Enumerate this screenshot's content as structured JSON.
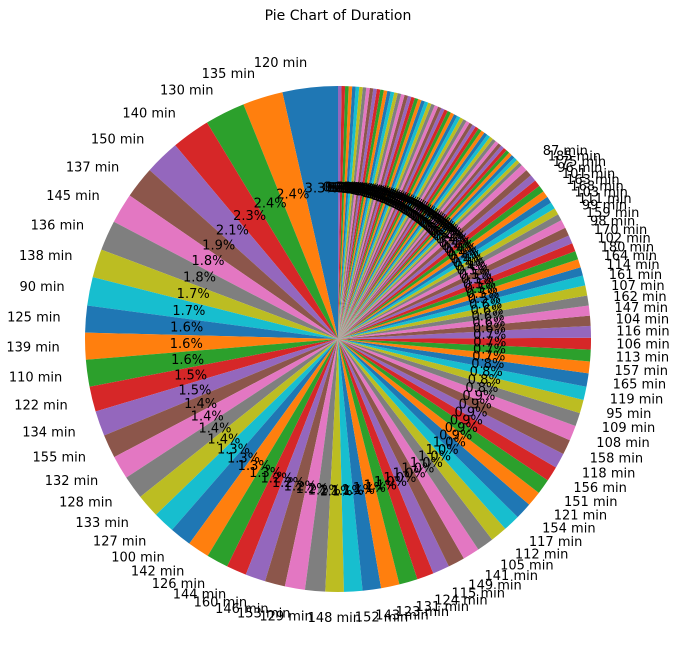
{
  "chart_data": {
    "type": "pie",
    "title": "Pie Chart of Duration",
    "start_angle_deg": 90,
    "direction": "counterclockwise",
    "label_suffix": " min",
    "palette": [
      "#1f77b4",
      "#ff7f0e",
      "#2ca02c",
      "#d62728",
      "#9467bd",
      "#8c564b",
      "#e377c2",
      "#7f7f7f",
      "#bcbd22",
      "#17becf"
    ],
    "named_slices": [
      {
        "label": "120 min",
        "value": 3.3
      },
      {
        "label": "135 min",
        "value": 2.4
      },
      {
        "label": "130 min",
        "value": 2.4
      },
      {
        "label": "140 min",
        "value": 2.3
      },
      {
        "label": "150 min",
        "value": 2.1
      },
      {
        "label": "137 min",
        "value": 1.9
      },
      {
        "label": "145 min",
        "value": 1.8
      },
      {
        "label": "136 min",
        "value": 1.8
      },
      {
        "label": "138 min",
        "value": 1.7
      },
      {
        "label": "90 min",
        "value": 1.7
      },
      {
        "label": "125 min",
        "value": 1.6
      },
      {
        "label": "139 min",
        "value": 1.6
      },
      {
        "label": "110 min",
        "value": 1.6
      },
      {
        "label": "122 min",
        "value": 1.5
      },
      {
        "label": "134 min",
        "value": 1.5
      },
      {
        "label": "155 min",
        "value": 1.4
      },
      {
        "label": "132 min",
        "value": 1.4
      },
      {
        "label": "128 min",
        "value": 1.4
      },
      {
        "label": "133 min",
        "value": 1.4
      },
      {
        "label": "127 min",
        "value": 1.3
      },
      {
        "label": "100 min",
        "value": 1.3
      },
      {
        "label": "142 min",
        "value": 1.3
      },
      {
        "label": "126 min",
        "value": 1.3
      },
      {
        "label": "144 min",
        "value": 1.2
      },
      {
        "label": "160 min",
        "value": 1.2
      },
      {
        "label": "146 min",
        "value": 1.2
      },
      {
        "label": "153 min",
        "value": 1.2
      },
      {
        "label": "129 min",
        "value": 1.2
      },
      {
        "label": "148 min",
        "value": 1.1
      },
      {
        "label": "152 min",
        "value": 1.1
      },
      {
        "label": "143 min",
        "value": 1.1
      },
      {
        "label": "123 min",
        "value": 1.1
      },
      {
        "label": "131 min",
        "value": 1.1
      },
      {
        "label": "124 min",
        "value": 1.0
      },
      {
        "label": "115 min",
        "value": 1.0
      },
      {
        "label": "149 min",
        "value": 1.0
      },
      {
        "label": "141 min",
        "value": 1.0
      },
      {
        "label": "105 min",
        "value": 1.0
      },
      {
        "label": "112 min",
        "value": 1.0
      },
      {
        "label": "117 min",
        "value": 1.0
      },
      {
        "label": "154 min",
        "value": 1.0
      },
      {
        "label": "121 min",
        "value": 0.9
      },
      {
        "label": "151 min",
        "value": 0.9
      },
      {
        "label": "156 min",
        "value": 0.9
      },
      {
        "label": "118 min",
        "value": 0.9
      },
      {
        "label": "158 min",
        "value": 0.9
      },
      {
        "label": "108 min",
        "value": 0.9
      },
      {
        "label": "109 min",
        "value": 0.8
      },
      {
        "label": "95 min",
        "value": 0.8
      },
      {
        "label": "119 min",
        "value": 0.8
      },
      {
        "label": "165 min",
        "value": 0.8
      },
      {
        "label": "157 min",
        "value": 0.7
      },
      {
        "label": "113 min",
        "value": 0.7
      },
      {
        "label": "106 min",
        "value": 0.7
      },
      {
        "label": "116 min",
        "value": 0.7
      },
      {
        "label": "104 min",
        "value": 0.6
      },
      {
        "label": "147 min",
        "value": 0.6
      },
      {
        "label": "162 min",
        "value": 0.6
      },
      {
        "label": "107 min",
        "value": 0.6
      },
      {
        "label": "161 min",
        "value": 0.6
      },
      {
        "label": "114 min",
        "value": 0.5
      },
      {
        "label": "164 min",
        "value": 0.5
      },
      {
        "label": "180 min",
        "value": 0.5
      },
      {
        "label": "102 min",
        "value": 0.5
      },
      {
        "label": "170 min",
        "value": 0.5
      },
      {
        "label": "98 min",
        "value": 0.5
      },
      {
        "label": "159 min",
        "value": 0.5
      },
      {
        "label": "99 min",
        "value": 0.4
      },
      {
        "label": "111 min",
        "value": 0.4
      },
      {
        "label": "103 min",
        "value": 0.4
      },
      {
        "label": "168 min",
        "value": 0.4
      },
      {
        "label": "163 min",
        "value": 0.4
      },
      {
        "label": "101 min",
        "value": 0.4
      },
      {
        "label": "96 min",
        "value": 0.4
      },
      {
        "label": "175 min",
        "value": 0.4
      },
      {
        "label": "185 min",
        "value": 0.4
      },
      {
        "label": "87 min",
        "value": 0.4
      }
    ],
    "remaining": {
      "count": 58,
      "value": 12.1,
      "label_value": 0.2
    }
  }
}
